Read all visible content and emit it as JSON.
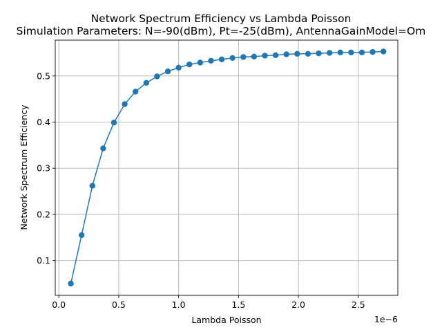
{
  "chart_data": {
    "type": "line",
    "title": "Network Spectrum Efficiency vs Lambda Poisson",
    "subtitle": "Simulation Parameters: N=-90(dBm), Pt=-25(dBm), AntennaGainModel=Om",
    "xlabel": "Lambda Poisson",
    "ylabel": "Network Spectrum Efficiency",
    "x_offset_label": "1e−6",
    "xlim": [
      -0.03,
      2.83
    ],
    "ylim": [
      0.0245,
      0.5777
    ],
    "grid": true,
    "x_ticks": [
      0.0,
      0.5,
      1.0,
      1.5,
      2.0,
      2.5
    ],
    "x_tick_labels": [
      "0.0",
      "0.5",
      "1.0",
      "1.5",
      "2.0",
      "2.5"
    ],
    "y_ticks": [
      0.1,
      0.2,
      0.3,
      0.4,
      0.5
    ],
    "y_tick_labels": [
      "0.1",
      "0.2",
      "0.3",
      "0.4",
      "0.5"
    ],
    "series": [
      {
        "color": "#1f77b4",
        "marker": "circle",
        "x": [
          0.1,
          0.19,
          0.28,
          0.37,
          0.46,
          0.55,
          0.64,
          0.73,
          0.82,
          0.91,
          1.0,
          1.09,
          1.18,
          1.27,
          1.36,
          1.45,
          1.54,
          1.63,
          1.72,
          1.81,
          1.9,
          1.99,
          2.08,
          2.17,
          2.26,
          2.35,
          2.44,
          2.53,
          2.62,
          2.71
        ],
        "y": [
          0.05,
          0.155,
          0.262,
          0.343,
          0.399,
          0.439,
          0.466,
          0.485,
          0.499,
          0.51,
          0.518,
          0.525,
          0.529,
          0.533,
          0.536,
          0.539,
          0.541,
          0.542,
          0.544,
          0.545,
          0.547,
          0.548,
          0.548,
          0.549,
          0.55,
          0.551,
          0.551,
          0.551,
          0.552,
          0.553
        ]
      }
    ]
  }
}
